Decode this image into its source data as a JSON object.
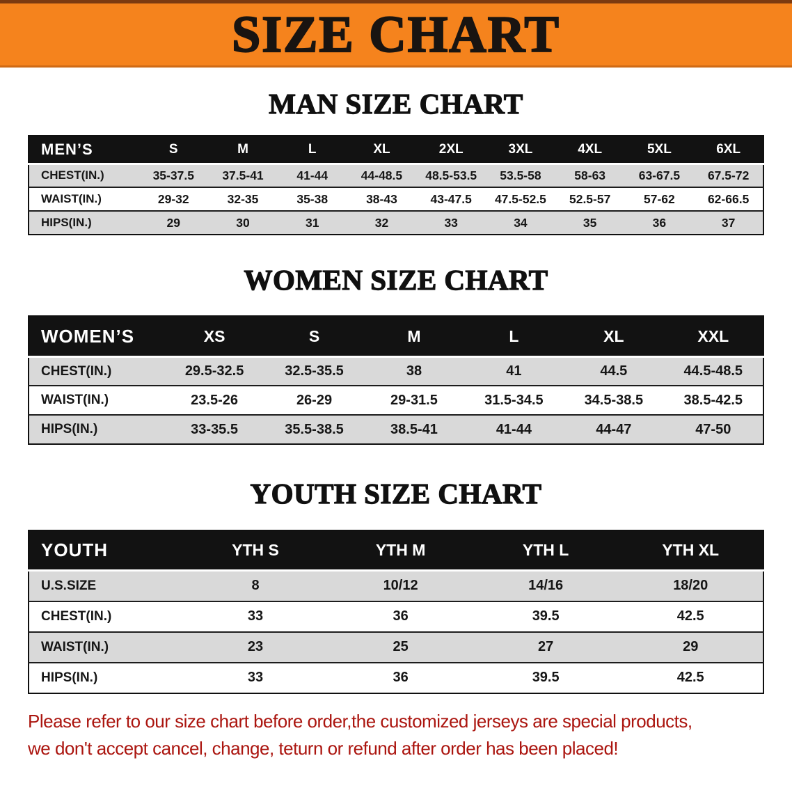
{
  "banner": {
    "title": "SIZE CHART"
  },
  "sections": {
    "men": {
      "heading": "MAN SIZE CHART",
      "table": {
        "header": [
          "MEN’S",
          "S",
          "M",
          "L",
          "XL",
          "2XL",
          "3XL",
          "4XL",
          "5XL",
          "6XL"
        ],
        "rows": [
          [
            "CHEST(IN.)",
            "35-37.5",
            "37.5-41",
            "41-44",
            "44-48.5",
            "48.5-53.5",
            "53.5-58",
            "58-63",
            "63-67.5",
            "67.5-72"
          ],
          [
            "WAIST(IN.)",
            "29-32",
            "32-35",
            "35-38",
            "38-43",
            "43-47.5",
            "47.5-52.5",
            "52.5-57",
            "57-62",
            "62-66.5"
          ],
          [
            "HIPS(IN.)",
            "29",
            "30",
            "31",
            "32",
            "33",
            "34",
            "35",
            "36",
            "37"
          ]
        ]
      }
    },
    "women": {
      "heading": "WOMEN SIZE CHART",
      "table": {
        "header": [
          "WOMEN’S",
          "XS",
          "S",
          "M",
          "L",
          "XL",
          "XXL"
        ],
        "rows": [
          [
            "CHEST(IN.)",
            "29.5-32.5",
            "32.5-35.5",
            "38",
            "41",
            "44.5",
            "44.5-48.5"
          ],
          [
            "WAIST(IN.)",
            "23.5-26",
            "26-29",
            "29-31.5",
            "31.5-34.5",
            "34.5-38.5",
            "38.5-42.5"
          ],
          [
            "HIPS(IN.)",
            "33-35.5",
            "35.5-38.5",
            "38.5-41",
            "41-44",
            "44-47",
            "47-50"
          ]
        ]
      }
    },
    "youth": {
      "heading": "YOUTH SIZE CHART",
      "table": {
        "header": [
          "YOUTH",
          "YTH S",
          "YTH M",
          "YTH L",
          "YTH XL"
        ],
        "rows": [
          [
            "U.S.SIZE",
            "8",
            "10/12",
            "14/16",
            "18/20"
          ],
          [
            "CHEST(IN.)",
            "33",
            "36",
            "39.5",
            "42.5"
          ],
          [
            "WAIST(IN.)",
            "23",
            "25",
            "27",
            "29"
          ],
          [
            "HIPS(IN.)",
            "33",
            "36",
            "39.5",
            "42.5"
          ]
        ]
      }
    }
  },
  "disclaimer": {
    "lines": [
      "Please refer to our size chart before order,the customized jerseys are special products,",
      "we don't accept cancel, change, teturn or refund after order has been placed!"
    ]
  },
  "colors": {
    "banner_orange": "#f5831d",
    "table_header_bg": "#121212",
    "row_stripe_gray": "#d9d9d9",
    "disclaimer_red": "#ab150f"
  }
}
